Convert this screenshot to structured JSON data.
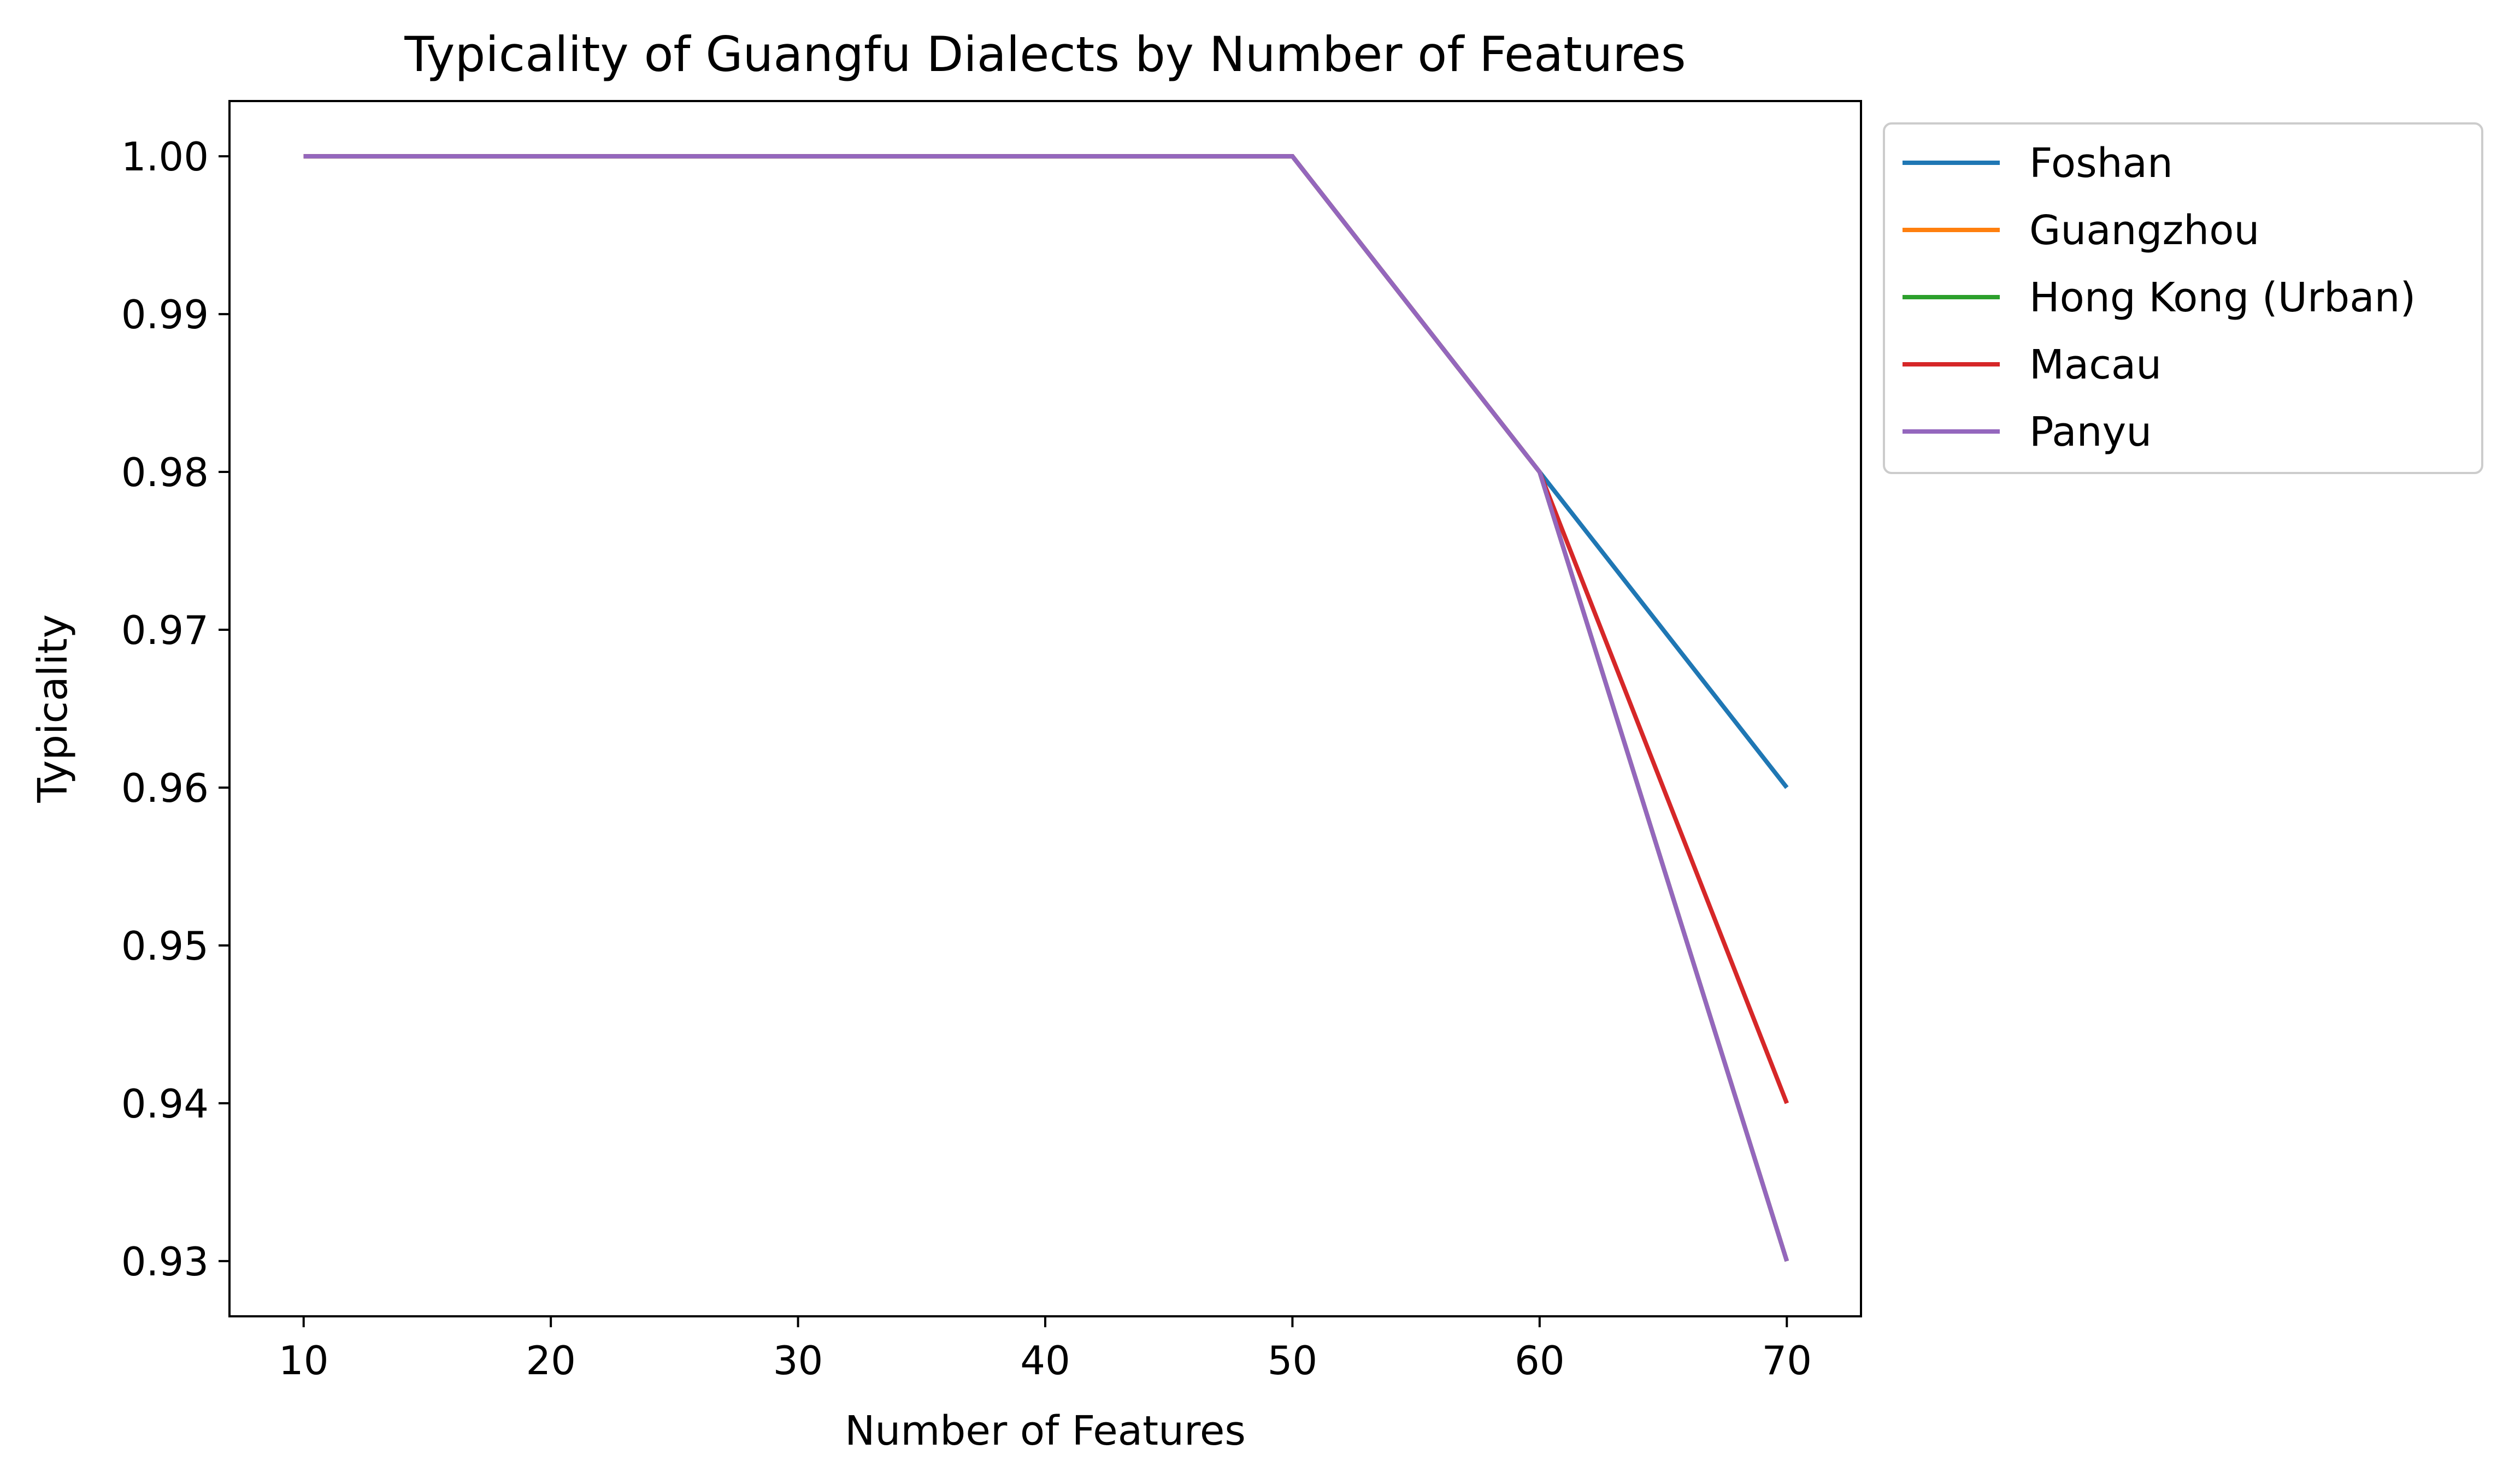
{
  "chart_data": {
    "type": "line",
    "title": "Typicality of Guangfu Dialects by Number of Features",
    "xlabel": "Number of Features",
    "ylabel": "Typicality",
    "x": [
      10,
      20,
      30,
      40,
      50,
      60,
      70
    ],
    "xlim": [
      7,
      73
    ],
    "ylim": [
      0.9265,
      1.0035
    ],
    "xticks": [
      "10",
      "20",
      "30",
      "40",
      "50",
      "60",
      "70"
    ],
    "xtick_values": [
      10,
      20,
      30,
      40,
      50,
      60,
      70
    ],
    "yticks": [
      "0.93",
      "0.94",
      "0.95",
      "0.96",
      "0.97",
      "0.98",
      "0.99",
      "1.00"
    ],
    "ytick_values": [
      0.93,
      0.94,
      0.95,
      0.96,
      0.97,
      0.98,
      0.99,
      1.0
    ],
    "grid": false,
    "legend_position": "outside-top-right",
    "series": [
      {
        "name": "Foshan",
        "color": "#1f77b4",
        "values": [
          1.0,
          1.0,
          1.0,
          1.0,
          1.0,
          0.98,
          0.96
        ]
      },
      {
        "name": "Guangzhou",
        "color": "#ff7f0e",
        "values": [
          1.0,
          1.0,
          1.0,
          1.0,
          1.0,
          0.98,
          0.93
        ]
      },
      {
        "name": "Hong Kong (Urban)",
        "color": "#2ca02c",
        "values": [
          1.0,
          1.0,
          1.0,
          1.0,
          1.0,
          0.98,
          0.93
        ]
      },
      {
        "name": "Macau",
        "color": "#d62728",
        "values": [
          1.0,
          1.0,
          1.0,
          1.0,
          1.0,
          0.98,
          0.94
        ]
      },
      {
        "name": "Panyu",
        "color": "#9467bd",
        "values": [
          1.0,
          1.0,
          1.0,
          1.0,
          1.0,
          0.98,
          0.93
        ]
      }
    ]
  }
}
